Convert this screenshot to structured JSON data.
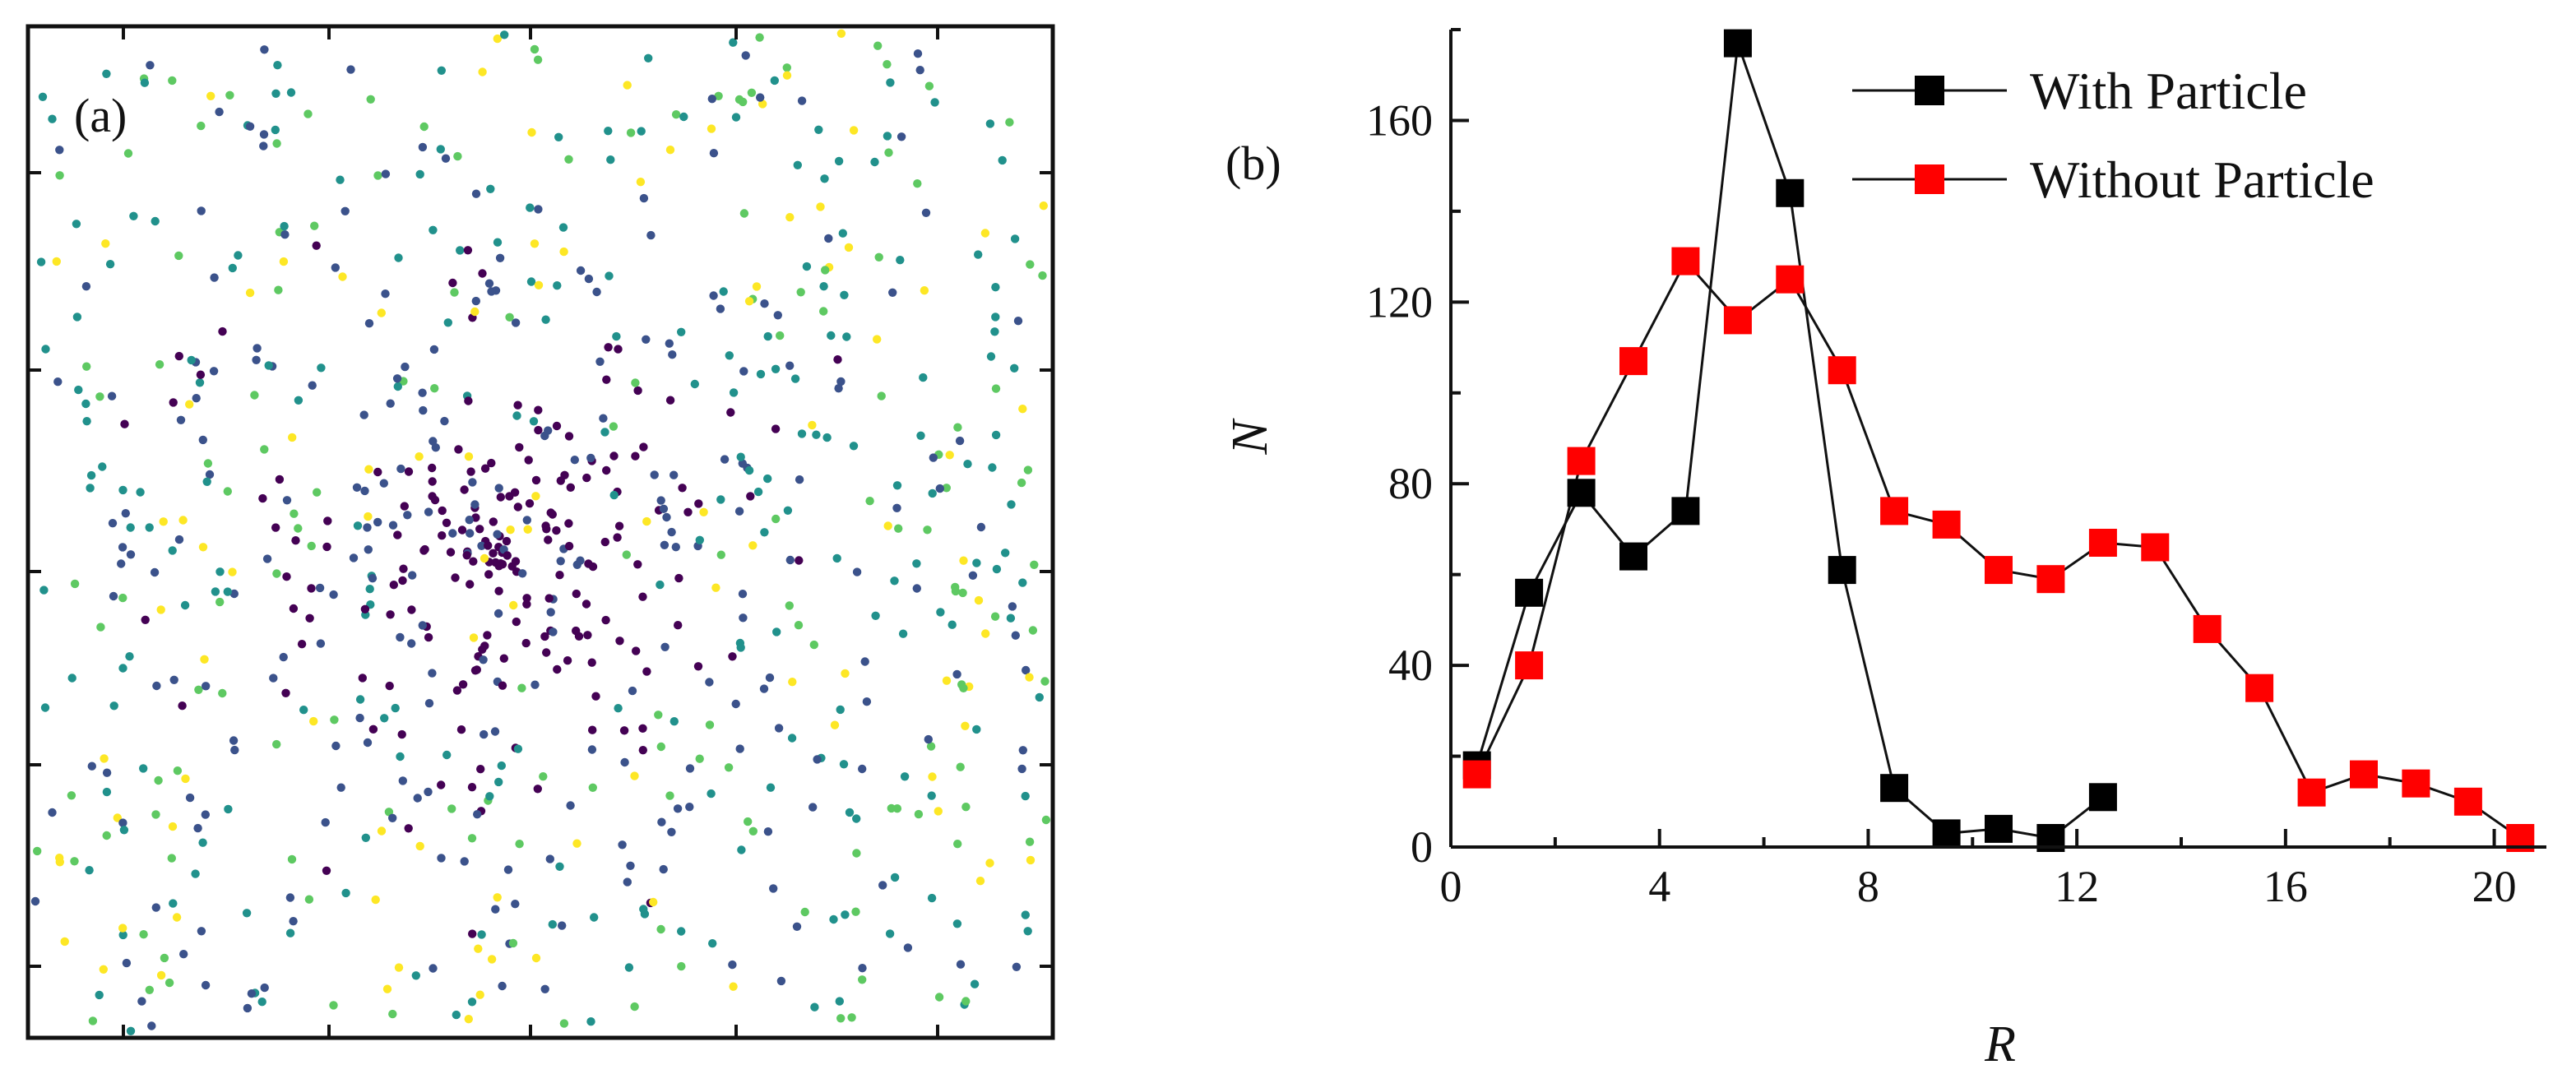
{
  "chart_data": [
    {
      "type": "scatter",
      "panel_label": "(a)",
      "title": "",
      "xlabel": "",
      "ylabel": "",
      "axis_ticks": "unlabeled",
      "grid": false,
      "legend": "none",
      "colors": [
        "#440154",
        "#3b528b",
        "#21918c",
        "#5ec962",
        "#fde725"
      ],
      "points_note_free": true,
      "distribution": {
        "count": 1150,
        "center": [
          0.46,
          0.52
        ],
        "dense_core_color": "#440154",
        "outer_color_mix": [
          "#21918c",
          "#5ec962",
          "#fde725"
        ]
      }
    },
    {
      "type": "line",
      "panel_label": "(b)",
      "title": "",
      "xlabel": "R",
      "ylabel": "N",
      "xlim": [
        0,
        21
      ],
      "ylim": [
        0,
        180
      ],
      "xticks": [
        0,
        4,
        8,
        12,
        16,
        20
      ],
      "yticks": [
        0,
        40,
        80,
        120,
        160
      ],
      "grid": false,
      "legend": "top-right",
      "series": [
        {
          "name": "With Particle",
          "color": "#000000",
          "marker": "square",
          "x": [
            0.5,
            1.5,
            2.5,
            3.5,
            4.5,
            5.5,
            6.5,
            7.5,
            8.5,
            9.5,
            10.5,
            11.5,
            12.5
          ],
          "y": [
            18,
            56,
            78,
            64,
            74,
            177,
            144,
            61,
            13,
            3,
            4,
            2,
            11
          ]
        },
        {
          "name": "Without Particle",
          "color": "#ff0000",
          "marker": "square",
          "x": [
            0.5,
            1.5,
            2.5,
            3.5,
            4.5,
            5.5,
            6.5,
            7.5,
            8.5,
            9.5,
            10.5,
            11.5,
            12.5,
            13.5,
            14.5,
            15.5,
            16.5,
            17.5,
            18.5,
            19.5,
            20.5
          ],
          "y": [
            16,
            40,
            85,
            107,
            129,
            116,
            125,
            105,
            74,
            71,
            61,
            59,
            67,
            66,
            48,
            35,
            12,
            16,
            14,
            10,
            2
          ]
        }
      ]
    }
  ]
}
